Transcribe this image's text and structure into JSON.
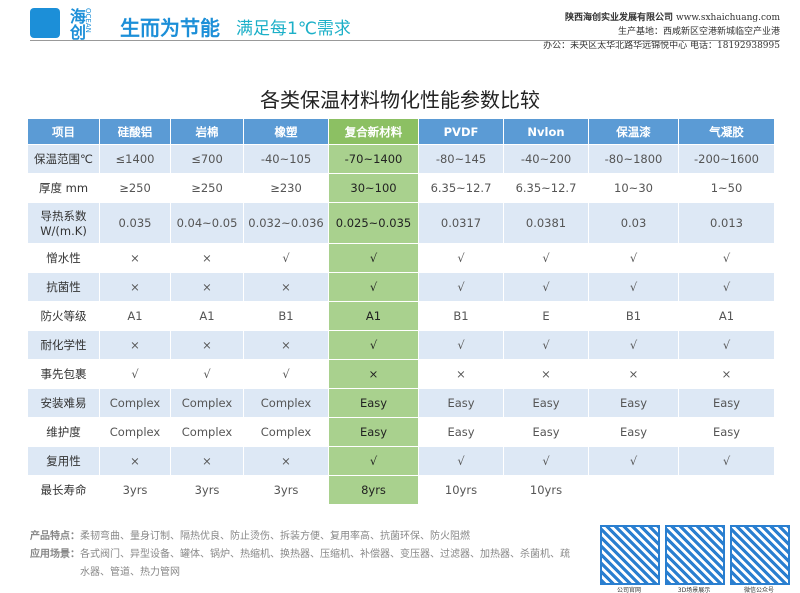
{
  "header": {
    "logo_text": "海创",
    "logo_sub": "OCEAN",
    "slogan": "生而为节能",
    "slogan2": "满足每1℃需求",
    "company": "陕西海创实业发展有限公司",
    "website": "www.sxhaichuang.com",
    "base": "生产基地：西咸新区空港新城临空产业港",
    "office": "办公：未央区太华北路华远锦悦中心",
    "phone": "电话：18192938995"
  },
  "title": "各类保温材料物化性能参数比较",
  "table": {
    "columns": [
      "项目",
      "硅酸铝",
      "岩棉",
      "橡塑",
      "复合新材料",
      "PVDF",
      "Nvlon",
      "保温漆",
      "气凝胶"
    ],
    "rows": [
      [
        "保温范围℃",
        "≤1400",
        "≤700",
        "-40~105",
        "-70~1400",
        "-80~145",
        "-40~200",
        "-80~1800",
        "-200~1600"
      ],
      [
        "厚度 mm",
        "≥250",
        "≥250",
        "≥230",
        "30~100",
        "6.35~12.7",
        "6.35~12.7",
        "10~30",
        "1~50"
      ],
      [
        "导热系数 W/(m.K)",
        "0.035",
        "0.04~0.05",
        "0.032~0.036",
        "0.025~0.035",
        "0.0317",
        "0.0381",
        "0.03",
        "0.013"
      ],
      [
        "憎水性",
        "×",
        "×",
        "√",
        "√",
        "√",
        "√",
        "√",
        "√"
      ],
      [
        "抗菌性",
        "×",
        "×",
        "×",
        "√",
        "√",
        "√",
        "√",
        "√"
      ],
      [
        "防火等级",
        "A1",
        "A1",
        "B1",
        "A1",
        "B1",
        "E",
        "B1",
        "A1"
      ],
      [
        "耐化学性",
        "×",
        "×",
        "×",
        "√",
        "√",
        "√",
        "√",
        "√"
      ],
      [
        "事先包裹",
        "√",
        "√",
        "√",
        "×",
        "×",
        "×",
        "×",
        "×"
      ],
      [
        "安装难易",
        "Complex",
        "Complex",
        "Complex",
        "Easy",
        "Easy",
        "Easy",
        "Easy",
        "Easy"
      ],
      [
        "维护度",
        "Complex",
        "Complex",
        "Complex",
        "Easy",
        "Easy",
        "Easy",
        "Easy",
        "Easy"
      ],
      [
        "复用性",
        "×",
        "×",
        "×",
        "√",
        "√",
        "√",
        "√",
        "√"
      ],
      [
        "最长寿命",
        "3yrs",
        "3yrs",
        "3yrs",
        "8yrs",
        "10yrs",
        "10yrs",
        null,
        null
      ]
    ]
  },
  "footer": {
    "features_label": "产品特点：",
    "features": "柔韧弯曲、量身订制、隔热优良、防止烫伤、拆装方便、复用率高、抗菌环保、防火阻燃",
    "apps_label": "应用场景：",
    "apps": "各式阀门、异型设备、罐体、锅炉、热缩机、换热器、压缩机、补偿器、变压器、过滤器、加热器、杀菌机、疏水器、管道、热力管网",
    "qr_labels": [
      "公司官网",
      "3D场景展示",
      "微信公众号"
    ]
  }
}
